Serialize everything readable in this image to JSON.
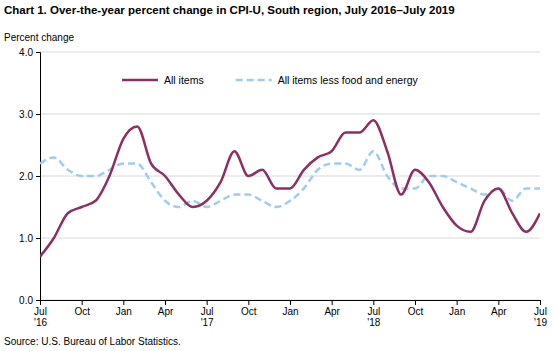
{
  "chart_data": {
    "type": "line",
    "title": "Chart 1. Over-the-year percent change in CPI-U, South region, July 2016–July 2019",
    "y_label": "Percent change",
    "source": "Source: U.S. Bureau of Labor Statistics.",
    "categories": [
      "Jul\n'16",
      null,
      null,
      "Oct",
      null,
      null,
      "Jan",
      null,
      null,
      "Apr",
      null,
      null,
      "Jul\n'17",
      null,
      null,
      "Oct",
      null,
      null,
      "Jan",
      null,
      null,
      "Apr",
      null,
      null,
      "Jul\n'18",
      null,
      null,
      "Oct",
      null,
      null,
      "Jan",
      null,
      null,
      "Apr",
      null,
      null,
      "Jul\n'19"
    ],
    "series": [
      {
        "name": "All items",
        "color": "#8e2f63",
        "line_style": "solid",
        "values": [
          0.7,
          1.0,
          1.4,
          1.5,
          1.6,
          2.0,
          2.6,
          2.8,
          2.2,
          2.0,
          1.7,
          1.5,
          1.6,
          1.9,
          2.4,
          2.0,
          2.1,
          1.8,
          1.8,
          2.1,
          2.3,
          2.4,
          2.7,
          2.7,
          2.9,
          2.4,
          1.7,
          2.1,
          1.9,
          1.5,
          1.2,
          1.1,
          1.6,
          1.8,
          1.4,
          1.1,
          1.4
        ]
      },
      {
        "name": "All items less food and energy",
        "color": "#9fcdef",
        "line_style": "dashed",
        "values": [
          2.2,
          2.3,
          2.1,
          2.0,
          2.0,
          2.1,
          2.2,
          2.2,
          1.9,
          1.6,
          1.5,
          1.6,
          1.5,
          1.6,
          1.7,
          1.7,
          1.6,
          1.5,
          1.6,
          1.8,
          2.1,
          2.2,
          2.2,
          2.1,
          2.4,
          2.0,
          1.8,
          1.8,
          2.0,
          2.0,
          1.9,
          1.8,
          1.7,
          1.8,
          1.6,
          1.8,
          1.8
        ]
      }
    ],
    "ylim": [
      0,
      4
    ],
    "yticks": [
      {
        "value": 0,
        "label": "0.0"
      },
      {
        "value": 1,
        "label": "1.0"
      },
      {
        "value": 2,
        "label": "2.0"
      },
      {
        "value": 3,
        "label": "3.0"
      },
      {
        "value": 4,
        "label": "4.0"
      }
    ],
    "grid": true,
    "legend": "top"
  }
}
